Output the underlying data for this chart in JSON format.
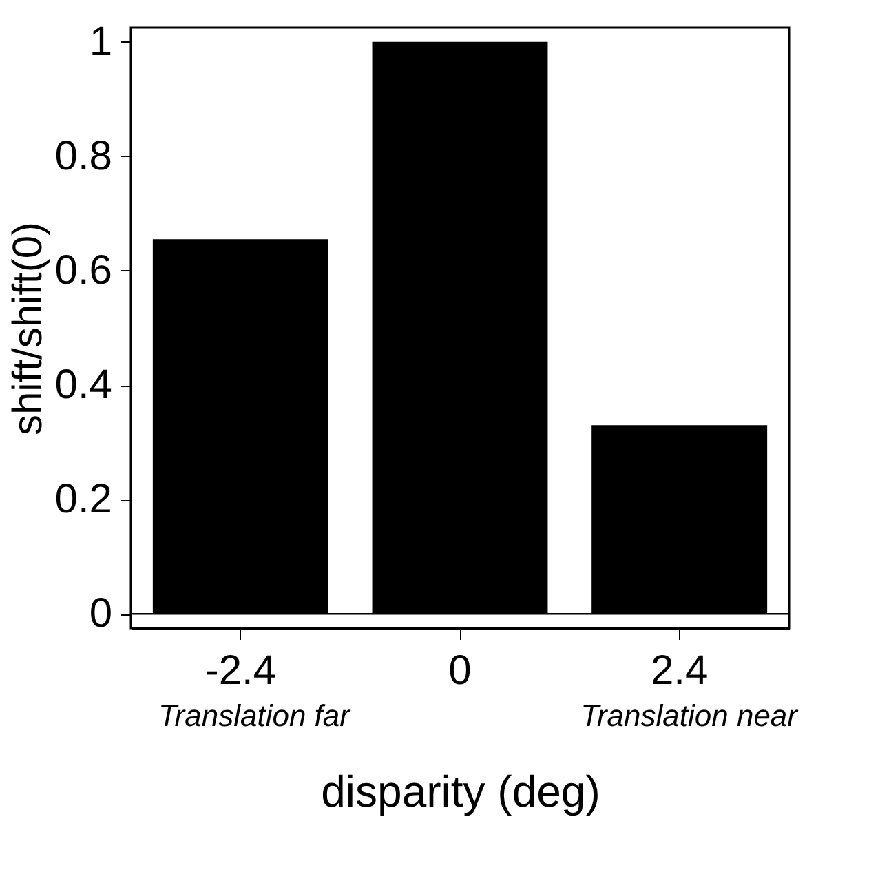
{
  "chart_data": {
    "type": "bar",
    "xlabel": "disparity (deg)",
    "ylabel": "shift/shift(0)",
    "categories": [
      "-2.4",
      "0",
      "2.4"
    ],
    "values": [
      0.655,
      1.0,
      0.33
    ],
    "color": "#000000",
    "ylim": [
      -0.025,
      1.025
    ],
    "yticks": [
      0,
      0.2,
      0.4,
      0.6,
      0.8,
      1
    ],
    "ref_lines": [
      {
        "axis": "y",
        "value": 0,
        "color": "#000000"
      }
    ],
    "annotations": [
      "Translation far",
      "Translation near"
    ],
    "grid": false
  }
}
